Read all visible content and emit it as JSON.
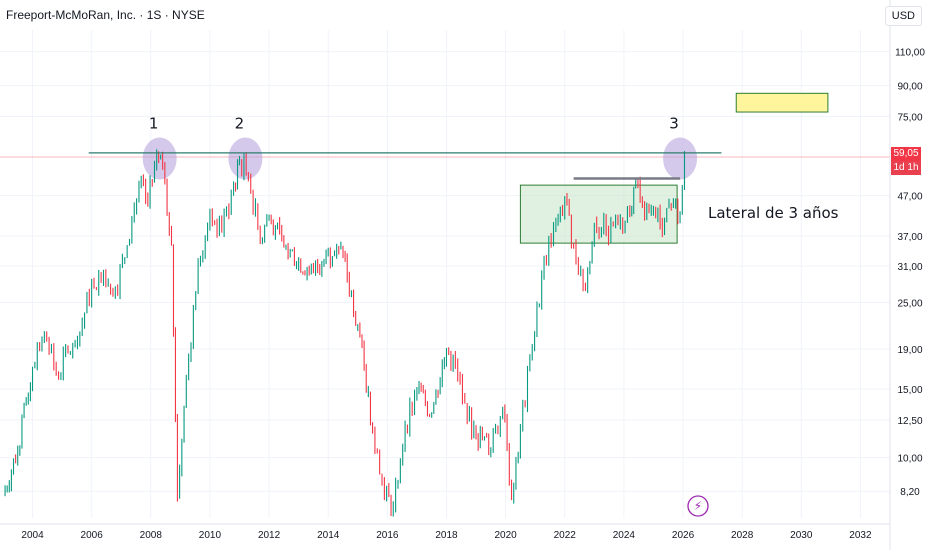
{
  "header": {
    "title": "Freeport-McMoRan, Inc. · 1S · NYSE",
    "currency": "USD"
  },
  "price_badge": {
    "price": "59,05",
    "countdown": "1d 1h"
  },
  "footer": {
    "alert_icon": "lightning-icon"
  },
  "colors": {
    "up": "#089981",
    "down": "#f23645",
    "resistance_line": "#2e7d6f",
    "price_line": "#f23645",
    "highlight_circle": "#b39ddb",
    "range_box_fill": "#c8e6c9",
    "range_box_border": "#2e7d32",
    "target_box_fill": "#fff59d",
    "target_box_border": "#2e7d32",
    "alert_icon": "#9c27b0"
  },
  "chart_data": {
    "type": "line",
    "title": "Freeport-McMoRan, Inc. · 1S · NYSE",
    "y_scale": "log",
    "ylim": [
      7,
      125
    ],
    "xlim": [
      2002.9,
      2033
    ],
    "x_ticks": [
      "2004",
      "2006",
      "2008",
      "2010",
      "2012",
      "2014",
      "2016",
      "2018",
      "2020",
      "2022",
      "2024",
      "2026",
      "2028",
      "2030",
      "2032"
    ],
    "y_ticks": [
      "110,00",
      "90,00",
      "75,00",
      "59,05",
      "47,00",
      "37,00",
      "31,00",
      "25,00",
      "19,00",
      "15,00",
      "12,50",
      "10,00",
      "8,20"
    ],
    "series": [
      {
        "x": [
          2003.0,
          2003.5,
          2004.0,
          2004.4,
          2004.8,
          2005.2,
          2005.6,
          2006.0,
          2006.4,
          2006.8,
          2007.2,
          2007.6,
          2007.9,
          2008.2,
          2008.4,
          2008.7,
          2008.9,
          2009.2,
          2009.6,
          2010.0,
          2010.4,
          2010.8,
          2011.0,
          2011.3,
          2011.7,
          2012.0,
          2012.5,
          2013.0,
          2013.5,
          2014.0,
          2014.5,
          2015.0,
          2015.5,
          2015.9,
          2016.2,
          2016.6,
          2017.0,
          2017.5,
          2018.0,
          2018.3,
          2018.7,
          2019.0,
          2019.5,
          2019.9,
          2020.2,
          2020.5,
          2020.9,
          2021.3,
          2021.7,
          2022.0,
          2022.3,
          2022.7,
          2023.0,
          2023.4,
          2023.8,
          2024.2,
          2024.4,
          2024.7,
          2025.0,
          2025.3,
          2025.6,
          2025.9,
          2026.05
        ],
        "values": [
          8.0,
          10.5,
          17.0,
          21.0,
          16.5,
          18.5,
          21.0,
          28.0,
          30.0,
          27.0,
          35.0,
          50.0,
          45.0,
          60.0,
          57.0,
          35.0,
          7.9,
          16.0,
          32.0,
          42.0,
          38.0,
          50.0,
          58.0,
          53.0,
          36.0,
          42.0,
          35.0,
          32.0,
          30.0,
          34.0,
          33.0,
          22.0,
          12.0,
          8.0,
          7.5,
          12.0,
          15.0,
          13.0,
          19.0,
          17.5,
          12.5,
          11.5,
          10.5,
          13.5,
          7.8,
          12.0,
          19.0,
          32.0,
          40.0,
          46.0,
          35.0,
          27.0,
          40.0,
          38.0,
          40.0,
          43.0,
          52.0,
          42.0,
          44.0,
          38.0,
          44.0,
          42.0,
          59.05
        ]
      }
    ],
    "annotations": {
      "peaks": [
        {
          "label": "1",
          "x": 2008.3,
          "y": 58.5
        },
        {
          "label": "2",
          "x": 2011.2,
          "y": 58.5
        },
        {
          "label": "3",
          "x": 2025.9,
          "y": 58.5
        }
      ],
      "range_label": "Lateral de 3 años",
      "resistance": {
        "y": 60.5,
        "x_start": 2005.9,
        "x_end": 2027.3
      },
      "range_top": {
        "y": 52.0,
        "x_start": 2022.3,
        "x_end": 2025.9
      },
      "range_box": {
        "x_start": 2020.5,
        "x_end": 2025.8,
        "y_low": 35.5,
        "y_high": 50.0
      },
      "target_box": {
        "x_start": 2027.8,
        "x_end": 2030.9,
        "y_low": 77.0,
        "y_high": 86.0
      },
      "last_price": 59.05
    }
  }
}
